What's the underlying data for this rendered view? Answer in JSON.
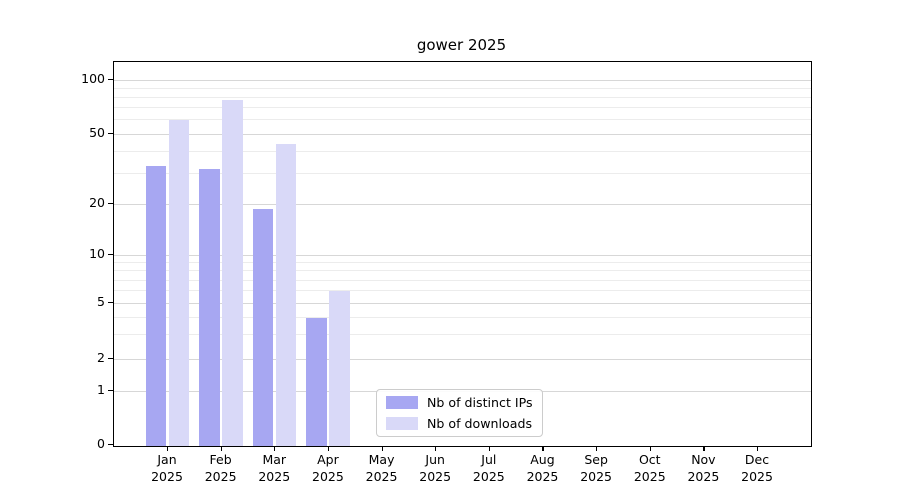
{
  "title": "gower 2025",
  "legend": {
    "items": [
      {
        "label": "Nb of distinct IPs",
        "color": "#a7a7f2"
      },
      {
        "label": "Nb of downloads",
        "color": "#d9d9f8"
      }
    ]
  },
  "chart_data": {
    "type": "bar",
    "title": "gower 2025",
    "categories": [
      "Jan 2025",
      "Feb 2025",
      "Mar 2025",
      "Apr 2025",
      "May 2025",
      "Jun 2025",
      "Jul 2025",
      "Aug 2025",
      "Sep 2025",
      "Oct 2025",
      "Nov 2025",
      "Dec 2025"
    ],
    "month_line1": [
      "Jan",
      "Feb",
      "Mar",
      "Apr",
      "May",
      "Jun",
      "Jul",
      "Aug",
      "Sep",
      "Oct",
      "Nov",
      "Dec"
    ],
    "month_line2": "2025",
    "series": [
      {
        "name": "Nb of distinct IPs",
        "color": "#a7a7f2",
        "values": [
          33,
          32,
          19,
          4,
          0,
          0,
          0,
          0,
          0,
          0,
          0,
          0
        ]
      },
      {
        "name": "Nb of downloads",
        "color": "#d9d9f8",
        "values": [
          60,
          78,
          44,
          6,
          0,
          0,
          0,
          0,
          0,
          0,
          0,
          0
        ]
      }
    ],
    "xlabel": "",
    "ylabel": "",
    "yscale": "symlog",
    "ylim": [
      0,
      130
    ],
    "y_ticks": [
      0,
      1,
      2,
      5,
      10,
      20,
      50,
      100
    ],
    "y_minor_ticks": [
      3,
      4,
      6,
      7,
      8,
      9,
      30,
      40,
      60,
      70,
      80,
      90
    ],
    "grid": "horizontal-major-and-minor",
    "legend_position": "lower-center-right"
  }
}
